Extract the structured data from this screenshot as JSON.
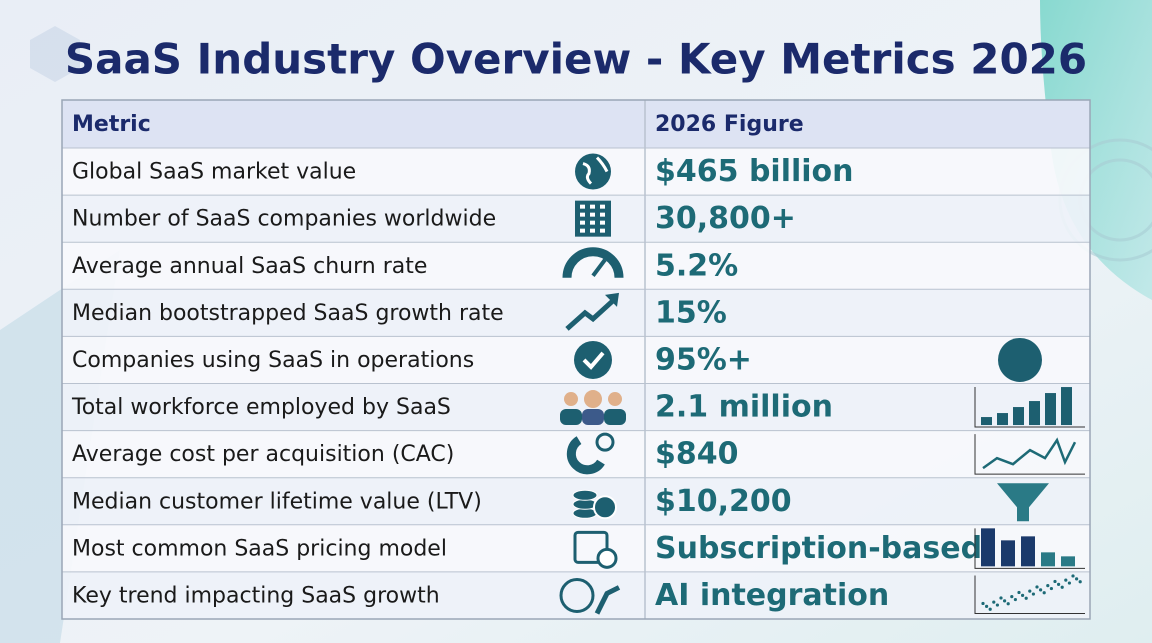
{
  "header": {
    "title": "SaaS Industry Overview - Key Metrics 2026"
  },
  "table": {
    "columns": [
      "Metric",
      "2026 Figure"
    ],
    "rows": [
      [
        "Global SaaS market value",
        "$465 billion"
      ],
      [
        "Number of SaaS companies worldwide",
        "30,800+"
      ],
      [
        "Average annual SaaS churn rate",
        "5.2%"
      ],
      [
        "Median bootstrapped SaaS growth rate",
        "15%"
      ],
      [
        "Companies using SaaS in operations",
        "95%+"
      ],
      [
        "Total workforce employed by SaaS",
        "2.1 million"
      ],
      [
        "Average cost per acquisition (CAC)",
        "$840"
      ],
      [
        "Median customer lifetime value (LTV)",
        "$10,200"
      ],
      [
        "Most common SaaS pricing model",
        "Subscription-based"
      ],
      [
        "Key trend impacting SaaS growth",
        "AI integration"
      ]
    ]
  }
}
